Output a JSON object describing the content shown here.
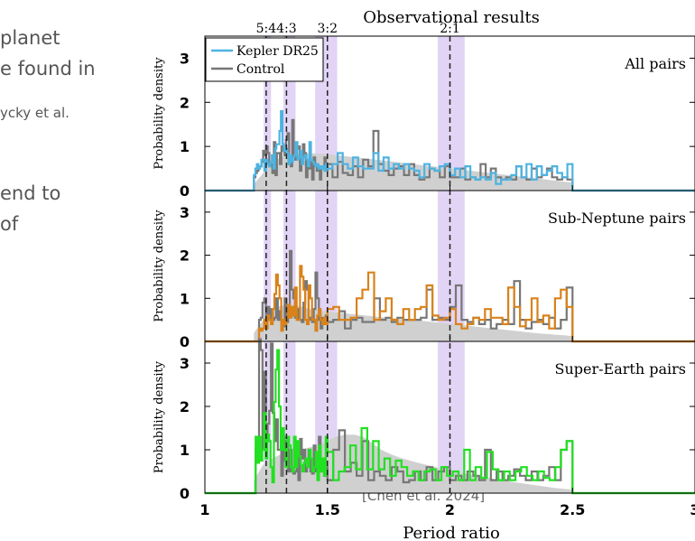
{
  "slide": {
    "lines": [
      "planet",
      "e found in",
      "ycky et al.",
      "end to",
      "of"
    ],
    "citation": "[Chen et al. 2024]"
  },
  "chart_data": {
    "type": "histogram",
    "title": "Observational results",
    "xlabel": "Period ratio",
    "ylabel": "Probability density",
    "xlim": [
      1,
      3
    ],
    "ylim": [
      0,
      3.5
    ],
    "x_ticks": [
      1,
      1.5,
      2,
      2.5,
      3
    ],
    "x_tick_labels": [
      "1",
      "1.5",
      "2",
      "2.5",
      "3"
    ],
    "y_ticks": [
      0,
      1,
      2,
      3
    ],
    "y_tick_labels": [
      "0",
      "1",
      "2",
      "3"
    ],
    "resonances": [
      {
        "label": "5:4",
        "value": 1.25
      },
      {
        "label": "4:3",
        "value": 1.333
      },
      {
        "label": "3:2",
        "value": 1.5
      },
      {
        "label": "2:1",
        "value": 2.0
      }
    ],
    "resonance_bands": [
      [
        1.24,
        1.27
      ],
      [
        1.32,
        1.37
      ],
      [
        1.45,
        1.54
      ],
      [
        1.95,
        2.06
      ]
    ],
    "legend": {
      "placement": "top-left",
      "entries": [
        "Kepler DR25",
        "Control"
      ]
    },
    "colors": {
      "control": "#777777",
      "band": "#e2d4f5",
      "area": "#d0d0d0"
    },
    "bin_edges": [
      1.2,
      1.5,
      2.5
    ],
    "panels": [
      {
        "label": "All pairs",
        "color": "#4db3e1",
        "observed": [
          0.35,
          0.5,
          0.6,
          0.5,
          0.55,
          0.7,
          0.7,
          0.45,
          0.7,
          0.6,
          0.55,
          0.65,
          0.8,
          0.5,
          0.95,
          1.05,
          1.05,
          1.35,
          1.8,
          1.05,
          0.9,
          0.95,
          0.85,
          0.6,
          0.8,
          0.65,
          0.75,
          0.8,
          1.1,
          0.7,
          0.75,
          0.9,
          0.6,
          0.75,
          0.8,
          0.7,
          0.55,
          1.1,
          0.7,
          0.65,
          0.6,
          0.55,
          0.6,
          0.5,
          0.55,
          0.5,
          0.55,
          0.45,
          0.6,
          0.5,
          0.6,
          0.85,
          0.6,
          0.5,
          0.75,
          0.55,
          0.5,
          0.5,
          0.85,
          0.45,
          0.75,
          0.5,
          0.6,
          0.5,
          0.6,
          0.5,
          0.45,
          0.3,
          0.6,
          0.5,
          0.45,
          0.55,
          0.6,
          0.35,
          0.5,
          0.3,
          0.55,
          0.3,
          0.25,
          0.3,
          0.25,
          0.4,
          0.15,
          0.25,
          0.25,
          0.35,
          0.55,
          0.3,
          0.6,
          0.25,
          0.55,
          0.35,
          0.45,
          0.55,
          0.4,
          0.3,
          0.6
        ],
        "control": [
          0.3,
          0.4,
          0.45,
          0.5,
          0.55,
          0.65,
          0.9,
          0.8,
          1.0,
          0.85,
          0.55,
          0.6,
          0.4,
          1.1,
          0.35,
          0.85,
          0.85,
          0.6,
          1.0,
          0.9,
          0.8,
          1.15,
          1.3,
          0.6,
          0.55,
          1.6,
          0.8,
          0.7,
          0.95,
          1.0,
          0.45,
          0.75,
          1.05,
          0.85,
          0.3,
          0.55,
          0.5,
          0.65,
          0.25,
          0.75,
          0.6,
          0.45,
          0.5,
          0.25,
          0.5,
          0.55,
          0.75,
          0.45,
          0.6,
          0.3,
          0.65,
          0.4,
          0.35,
          0.55,
          0.3,
          0.7,
          0.55,
          1.35,
          0.6,
          0.45,
          0.35,
          0.5,
          0.55,
          0.35,
          0.6,
          0.35,
          0.25,
          0.3,
          0.5,
          0.45,
          0.3,
          0.55,
          0.3,
          0.3,
          0.5,
          0.25,
          0.3,
          0.25,
          0.6,
          0.3,
          0.5,
          0.3,
          0.25,
          0.3,
          0.25,
          0.55,
          0.3,
          0.25,
          0.5,
          0.3,
          0.35,
          0.5,
          0.3,
          0.25,
          0.3,
          0.25
        ],
        "baseline": [
          0.15,
          0.35,
          0.55,
          0.7,
          0.78,
          0.82,
          0.85,
          0.85,
          0.84,
          0.83,
          0.82,
          0.8,
          0.78,
          0.76,
          0.74,
          0.72,
          0.7,
          0.68,
          0.66,
          0.64,
          0.62,
          0.6,
          0.58,
          0.56,
          0.54,
          0.52,
          0.5,
          0.48,
          0.46,
          0.44,
          0.42,
          0.4,
          0.38,
          0.36,
          0.34,
          0.32,
          0.3,
          0.28,
          0.26,
          0.24,
          0.22,
          0.2,
          0.18
        ]
      },
      {
        "label": "Sub-Neptune pairs",
        "color": "#d9821a",
        "observed": [
          0,
          0,
          0,
          0.3,
          0.25,
          0.3,
          0.5,
          0.3,
          0.6,
          0.5,
          0.4,
          0.75,
          1.1,
          1.55,
          1.3,
          1.0,
          0.25,
          0.5,
          0.4,
          0.55,
          0.85,
          0.55,
          0.8,
          0.6,
          1.25,
          0.5,
          0.5,
          1.75,
          1.5,
          1.2,
          0.5,
          0.4,
          1.3,
          1.0,
          0.5,
          0.5,
          0.25,
          0.6,
          0.75,
          0.5,
          0.4,
          0.55,
          0.4,
          0.75,
          0.8,
          0.5,
          0.5,
          0.55,
          1.0,
          1.2,
          1.6,
          0.5,
          0.7,
          1.0,
          0.5,
          0.4,
          0.75,
          0.5,
          0.75,
          0.8,
          1.3,
          0.6,
          0.5,
          0.55,
          0.75,
          0.4,
          0.3,
          0.4,
          0.55,
          0.5,
          0.75,
          0.55,
          0.55,
          0.4,
          1.25,
          0.8,
          0.35,
          0.5,
          1.0,
          0.45,
          0.6,
          0.3,
          1.0,
          1.2,
          0.8
        ],
        "control": [
          0,
          0,
          0,
          0.5,
          0.55,
          0.9,
          1.0,
          0.5,
          0.8,
          0.5,
          0.75,
          0.5,
          0.55,
          1.0,
          0.5,
          0.7,
          0.5,
          0.35,
          1.0,
          0.45,
          0.6,
          2.1,
          1.2,
          1.0,
          0.55,
          0.75,
          0.5,
          0.5,
          0.45,
          0.9,
          1.4,
          1.2,
          0.5,
          0.55,
          0.45,
          0.75,
          1.6,
          1.0,
          0.5,
          0.3,
          0.55,
          0.5,
          0.6,
          0.45,
          0.5,
          0.7,
          0.3,
          0.5,
          0.55,
          0.45,
          0.45,
          1.0,
          0.5,
          0.55,
          0.45,
          0.55,
          0.5,
          0.5,
          0.5,
          0.55,
          1.2,
          0.5,
          0.55,
          0.5,
          0.8,
          1.3,
          0.5,
          0.45,
          0.55,
          0.4,
          0.5,
          0.3,
          0.4,
          0.5,
          0.4,
          1.4,
          0.5,
          0.3,
          0.45,
          0.5,
          0.4,
          0.55,
          0.3,
          0.5,
          1.25
        ],
        "baseline": [
          0.2,
          0.45,
          0.7,
          0.8,
          0.85,
          0.85,
          0.8,
          0.75,
          0.72,
          0.7,
          0.68,
          0.66,
          0.64,
          0.62,
          0.6,
          0.58,
          0.56,
          0.55,
          0.53,
          0.51,
          0.5,
          0.48,
          0.46,
          0.44,
          0.42,
          0.4,
          0.38,
          0.36,
          0.34,
          0.32,
          0.3,
          0.28,
          0.26,
          0.24,
          0.22,
          0.2,
          0.18,
          0.17,
          0.15,
          0.14,
          0.12
        ]
      },
      {
        "label": "Super-Earth pairs",
        "color": "#22e022",
        "observed": [
          0,
          1.3,
          0.7,
          1.3,
          0.75,
          1.0,
          1.85,
          0.8,
          1.35,
          1.2,
          0.6,
          0.25,
          2.1,
          2.85,
          3.3,
          2.0,
          1.0,
          1.5,
          1.0,
          0.6,
          1.3,
          1.1,
          0.6,
          0.5,
          1.3,
          0.6,
          1.2,
          0.85,
          0.65,
          0.5,
          0.7,
          0.8,
          0.6,
          1.0,
          0.8,
          0.5,
          0.6,
          0.95,
          0.3,
          1.1,
          0.5,
          0.8,
          0.4,
          1.3,
          0.95,
          0.3,
          0.5,
          0.6,
          1.1,
          0.55,
          1.5,
          0.55,
          1.2,
          0.55,
          0.8,
          0.4,
          0.75,
          0.6,
          0.4,
          0.5,
          0.3,
          0.5,
          0.55,
          0.3,
          0.6,
          0.4,
          0.5,
          0.3,
          1.0,
          0.3,
          0.6,
          0.35,
          0.95,
          0.55,
          0.3,
          0.5,
          0.3,
          0.5,
          0.6,
          0.4,
          0.3,
          0.5,
          0.35,
          0.3,
          0.6,
          1.0,
          1.2
        ],
        "control": [
          0,
          1.0,
          0.8,
          3.55,
          3.3,
          1.0,
          2.8,
          1.25,
          1.6,
          1.9,
          3.45,
          1.85,
          1.2,
          1.7,
          1.0,
          1.0,
          0.4,
          1.3,
          0.75,
          1.2,
          0.5,
          1.0,
          0.5,
          0.45,
          0.5,
          1.0,
          0.3,
          1.25,
          0.8,
          1.0,
          0.5,
          0.6,
          1.0,
          0.5,
          0.45,
          1.1,
          0.5,
          0.8,
          1.3,
          0.5,
          0.55,
          0.4,
          0.6,
          0.3,
          1.0,
          1.45,
          0.5,
          0.7,
          0.4,
          1.2,
          0.3,
          0.5,
          0.4,
          0.3,
          0.6,
          0.5,
          0.25,
          0.3,
          0.5,
          0.3,
          0.6,
          0.3,
          0.5,
          0.6,
          0.3,
          0.4,
          0.3,
          0.5,
          0.4,
          0.3,
          1.0,
          0.3,
          0.5,
          0.3,
          0.4,
          0.55,
          0.4,
          0.3,
          0.5,
          0.3,
          0.4,
          0.6,
          0.3,
          1.0,
          1.2
        ],
        "baseline": [
          0.3,
          0.65,
          0.8,
          0.9,
          0.95,
          1.0,
          1.05,
          1.1,
          1.2,
          1.3,
          1.35,
          1.35,
          1.3,
          1.15,
          1.0,
          0.9,
          0.82,
          0.76,
          0.7,
          0.65,
          0.6,
          0.55,
          0.5,
          0.46,
          0.42,
          0.38,
          0.34,
          0.3,
          0.27,
          0.24,
          0.21,
          0.18,
          0.15,
          0.12,
          0.1,
          0.08
        ]
      }
    ]
  }
}
